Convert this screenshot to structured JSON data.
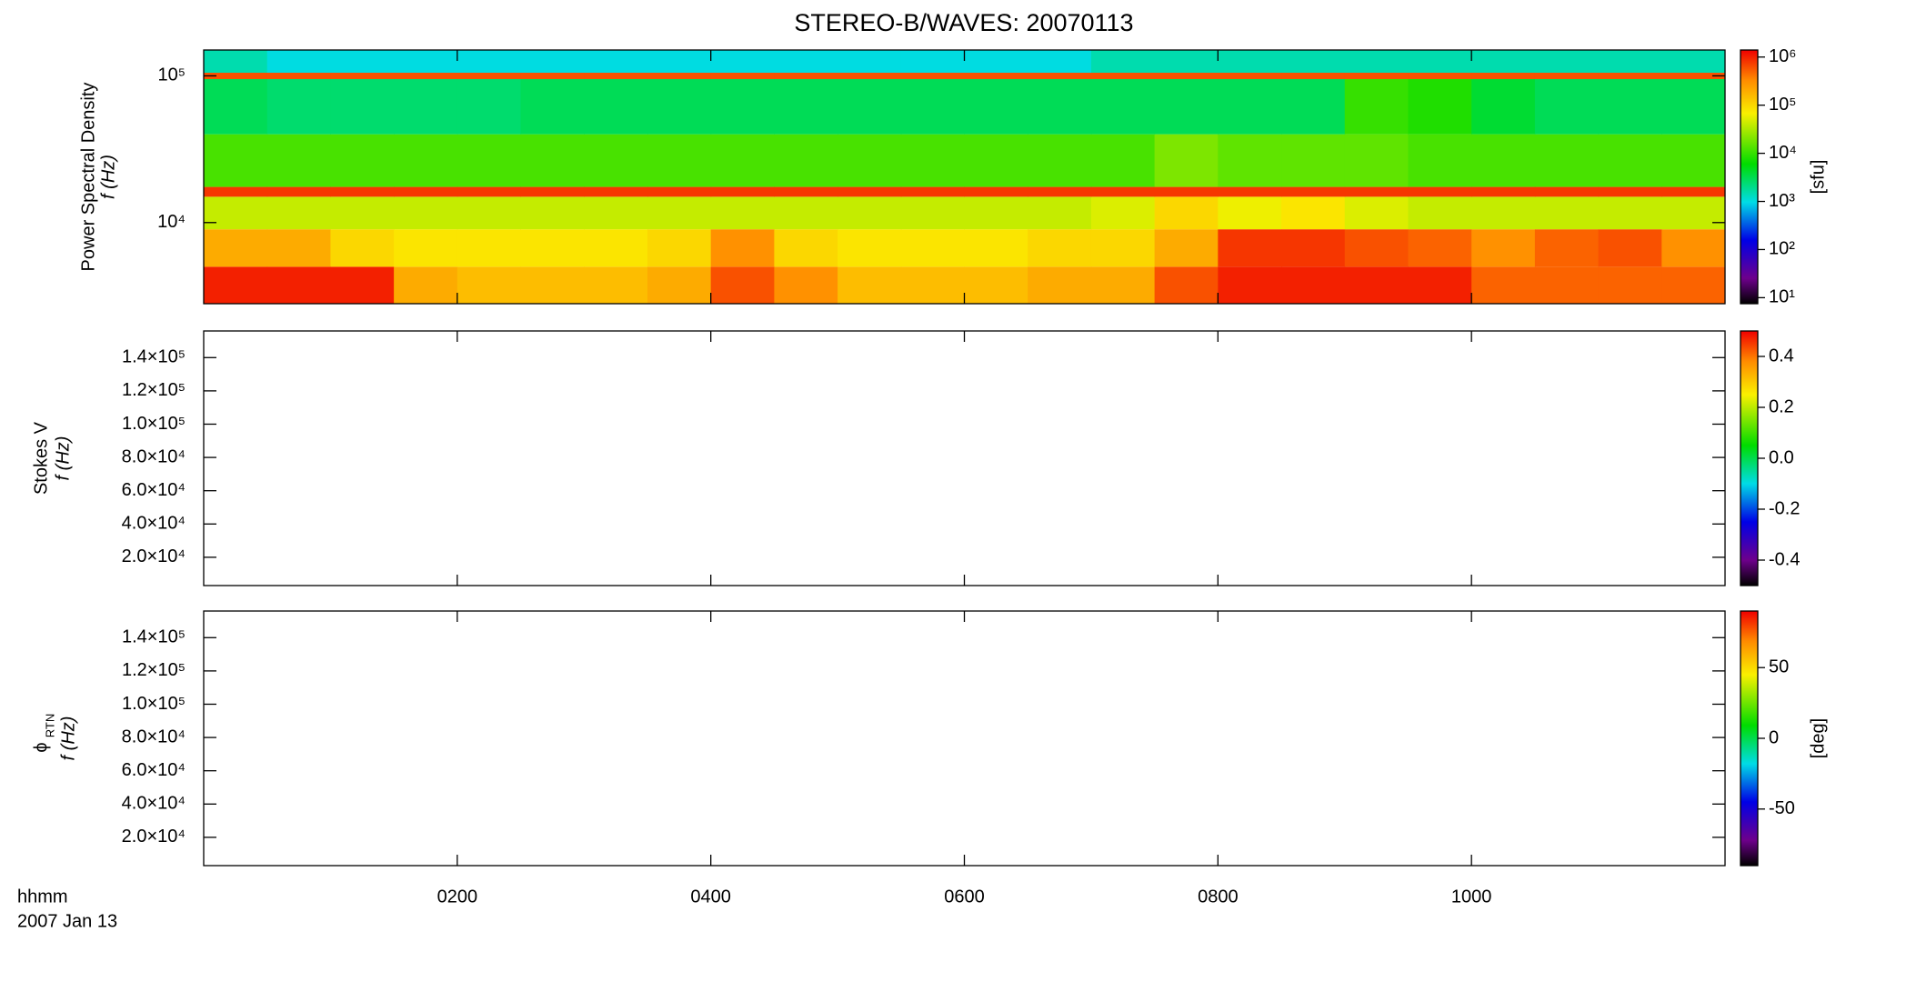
{
  "chart_data": [
    {
      "type": "heatmap",
      "title": "STEREO-B/WAVES: 20070113",
      "ylabel": "Power Spectral Density",
      "ylabel2": "f (Hz)",
      "xlim": [
        0,
        12
      ],
      "xticks": [
        2,
        4,
        6,
        8,
        10
      ],
      "ylim": [
        2800,
        150000
      ],
      "ylog": true,
      "yticks": [
        {
          "value": 10000,
          "label": "10⁴"
        },
        {
          "value": 100000,
          "label": "10⁵"
        }
      ],
      "zlim": [
        7.5,
        1400000
      ],
      "zlog": true,
      "zlabel": "[sfu]",
      "zticks": [
        {
          "value": 10,
          "label": "10¹"
        },
        {
          "value": 100,
          "label": "10²"
        },
        {
          "value": 1000,
          "label": "10³"
        },
        {
          "value": 10000,
          "label": "10⁴"
        },
        {
          "value": 100000,
          "label": "10⁵"
        },
        {
          "value": 1000000,
          "label": "10⁶"
        }
      ],
      "x_bins": [
        0,
        0.5,
        1,
        1.5,
        2,
        2.5,
        3,
        3.5,
        4,
        4.5,
        5,
        5.5,
        6,
        6.5,
        7,
        7.5,
        8,
        8.5,
        9,
        9.5,
        10,
        10.5,
        11,
        11.5,
        12
      ],
      "y_bins": [
        2800,
        5000,
        9000,
        15000,
        17500,
        40000,
        95000,
        105000,
        150000
      ],
      "values": [
        [
          1000000,
          1000000,
          1000000,
          200000,
          150000,
          150000,
          150000,
          200000,
          600000,
          300000,
          150000,
          150000,
          150000,
          200000,
          200000,
          600000,
          1000000,
          1000000,
          1000000,
          1000000,
          500000,
          500000,
          500000,
          500000
        ],
        [
          200000,
          200000,
          100000,
          80000,
          80000,
          80000,
          80000,
          100000,
          300000,
          100000,
          80000,
          80000,
          80000,
          100000,
          100000,
          200000,
          800000,
          800000,
          600000,
          500000,
          300000,
          500000,
          600000,
          300000
        ],
        [
          40000,
          40000,
          40000,
          40000,
          40000,
          40000,
          40000,
          40000,
          40000,
          40000,
          40000,
          40000,
          40000,
          40000,
          50000,
          100000,
          60000,
          80000,
          50000,
          40000,
          40000,
          40000,
          40000,
          40000
        ],
        [
          800000,
          800000,
          800000,
          800000,
          800000,
          800000,
          800000,
          800000,
          800000,
          800000,
          800000,
          800000,
          800000,
          800000,
          800000,
          800000,
          800000,
          800000,
          800000,
          800000,
          800000,
          800000,
          800000,
          800000
        ],
        [
          12000,
          12000,
          12000,
          12000,
          12000,
          12000,
          12000,
          12000,
          12000,
          12000,
          12000,
          12000,
          12000,
          12000,
          12000,
          20000,
          15000,
          15000,
          15000,
          12000,
          12000,
          12000,
          12000,
          12000
        ],
        [
          3000,
          2500,
          2500,
          2500,
          2500,
          3000,
          3000,
          3000,
          3000,
          3000,
          3000,
          3000,
          3000,
          3000,
          3000,
          3000,
          3000,
          3000,
          10000,
          8000,
          4000,
          3000,
          3000,
          3000
        ],
        [
          600000,
          600000,
          600000,
          600000,
          600000,
          600000,
          600000,
          600000,
          600000,
          600000,
          600000,
          600000,
          600000,
          600000,
          600000,
          600000,
          600000,
          600000,
          600000,
          600000,
          600000,
          600000,
          600000,
          600000
        ],
        [
          1500,
          1000,
          1000,
          1000,
          1000,
          1000,
          1000,
          1000,
          1000,
          1000,
          1000,
          1000,
          1000,
          1000,
          1500,
          1500,
          1500,
          1500,
          1500,
          1500,
          1500,
          1500,
          1500,
          1500
        ]
      ]
    },
    {
      "type": "heatmap",
      "ylabel": "Stokes V",
      "ylabel2": "f (Hz)",
      "xlim": [
        0,
        12
      ],
      "xticks": [
        2,
        4,
        6,
        8,
        10
      ],
      "ylim": [
        3000,
        156000
      ],
      "yticks": [
        {
          "value": 20000,
          "label": "2.0×10⁴"
        },
        {
          "value": 40000,
          "label": "4.0×10⁴"
        },
        {
          "value": 60000,
          "label": "6.0×10⁴"
        },
        {
          "value": 80000,
          "label": "8.0×10⁴"
        },
        {
          "value": 100000,
          "label": "1.0×10⁵"
        },
        {
          "value": 120000,
          "label": "1.2×10⁵"
        },
        {
          "value": 140000,
          "label": "1.4×10⁵"
        }
      ],
      "zlim": [
        -0.5,
        0.5
      ],
      "zticks": [
        -0.4,
        -0.2,
        {
          "value": 0,
          "label": "0.0"
        },
        0.2,
        0.4
      ]
    },
    {
      "type": "heatmap",
      "ylabel": "ϕ",
      "ylabel_sub": "RTN",
      "ylabel2": "f (Hz)",
      "x_label": "hhmm",
      "date": "2007 Jan 13",
      "xlim": [
        0,
        12
      ],
      "xticks": [
        {
          "value": 2,
          "label": "0200"
        },
        {
          "value": 4,
          "label": "0400"
        },
        {
          "value": 6,
          "label": "0600"
        },
        {
          "value": 8,
          "label": "0800"
        },
        {
          "value": 10,
          "label": "1000"
        }
      ],
      "ylim": [
        3000,
        156000
      ],
      "yticks": [
        {
          "value": 20000,
          "label": "2.0×10⁴"
        },
        {
          "value": 40000,
          "label": "4.0×10⁴"
        },
        {
          "value": 60000,
          "label": "6.0×10⁴"
        },
        {
          "value": 80000,
          "label": "8.0×10⁴"
        },
        {
          "value": 100000,
          "label": "1.0×10⁵"
        },
        {
          "value": 120000,
          "label": "1.2×10⁵"
        },
        {
          "value": 140000,
          "label": "1.4×10⁵"
        }
      ],
      "zlim": [
        -90,
        90
      ],
      "zlabel": "[deg]",
      "zticks": [
        -50,
        0,
        50
      ]
    }
  ]
}
